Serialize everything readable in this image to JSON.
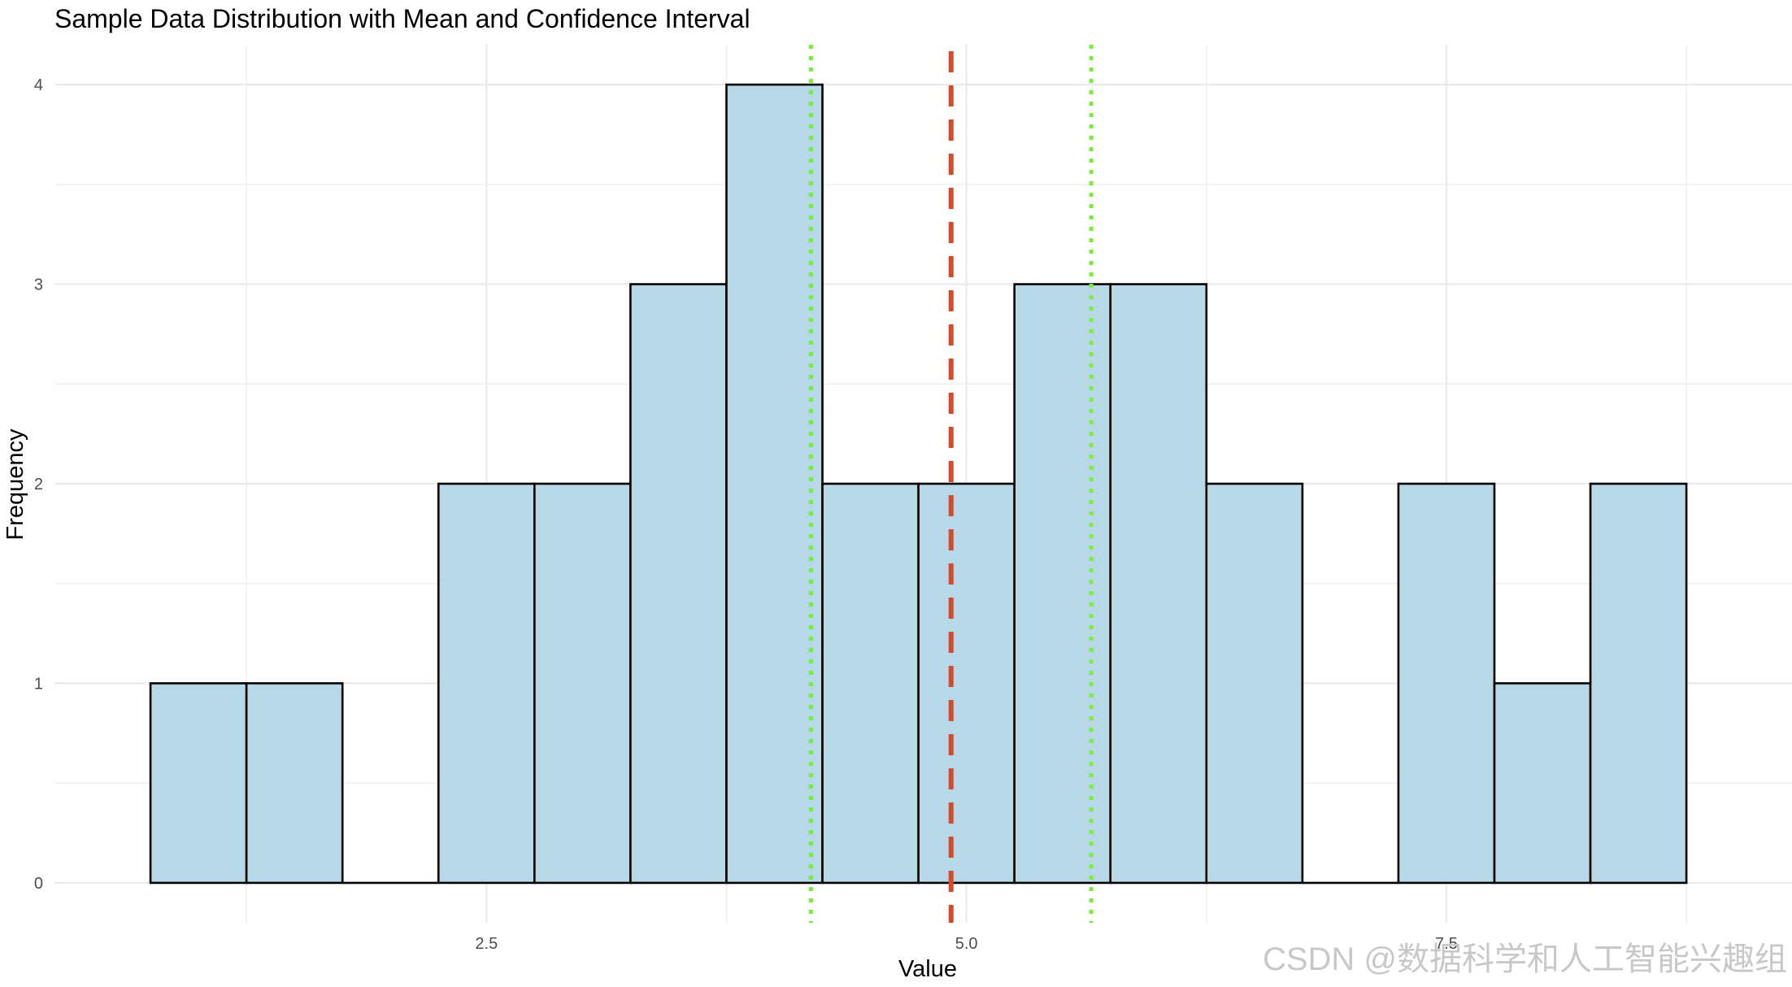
{
  "chart_data": {
    "type": "bar",
    "title": "Sample Data Distribution with Mean and Confidence Interval",
    "xlabel": "Value",
    "ylabel": "Frequency",
    "xlim": [
      0.25,
      9.3
    ],
    "ylim": [
      -0.2,
      4.2
    ],
    "x_ticks": [
      2.5,
      5.0,
      7.5
    ],
    "x_tick_labels": [
      "2.5",
      "5.0",
      "7.5"
    ],
    "y_ticks": [
      0,
      1,
      2,
      3,
      4
    ],
    "y_tick_labels": [
      "0",
      "1",
      "2",
      "3",
      "4"
    ],
    "bin_width": 0.5,
    "bins": [
      {
        "x": 1.0,
        "count": 1
      },
      {
        "x": 1.5,
        "count": 1
      },
      {
        "x": 2.0,
        "count": 0
      },
      {
        "x": 2.5,
        "count": 2
      },
      {
        "x": 3.0,
        "count": 2
      },
      {
        "x": 3.5,
        "count": 3
      },
      {
        "x": 4.0,
        "count": 4
      },
      {
        "x": 4.5,
        "count": 2
      },
      {
        "x": 5.0,
        "count": 2
      },
      {
        "x": 5.5,
        "count": 3
      },
      {
        "x": 6.0,
        "count": 3
      },
      {
        "x": 6.5,
        "count": 2
      },
      {
        "x": 7.0,
        "count": 0
      },
      {
        "x": 7.5,
        "count": 2
      },
      {
        "x": 8.0,
        "count": 1
      },
      {
        "x": 8.5,
        "count": 2
      }
    ],
    "mean": 4.92,
    "ci": [
      4.19,
      5.65
    ],
    "colors": {
      "bar_fill": "#b7d8e7",
      "bar_stroke": "#000000",
      "mean_line": "#d64a2c",
      "ci_line": "#76ee3b",
      "grid": "#ebebeb"
    },
    "grid": true,
    "legend": "none"
  },
  "watermark": "CSDN @数据科学和人工智能兴趣组"
}
